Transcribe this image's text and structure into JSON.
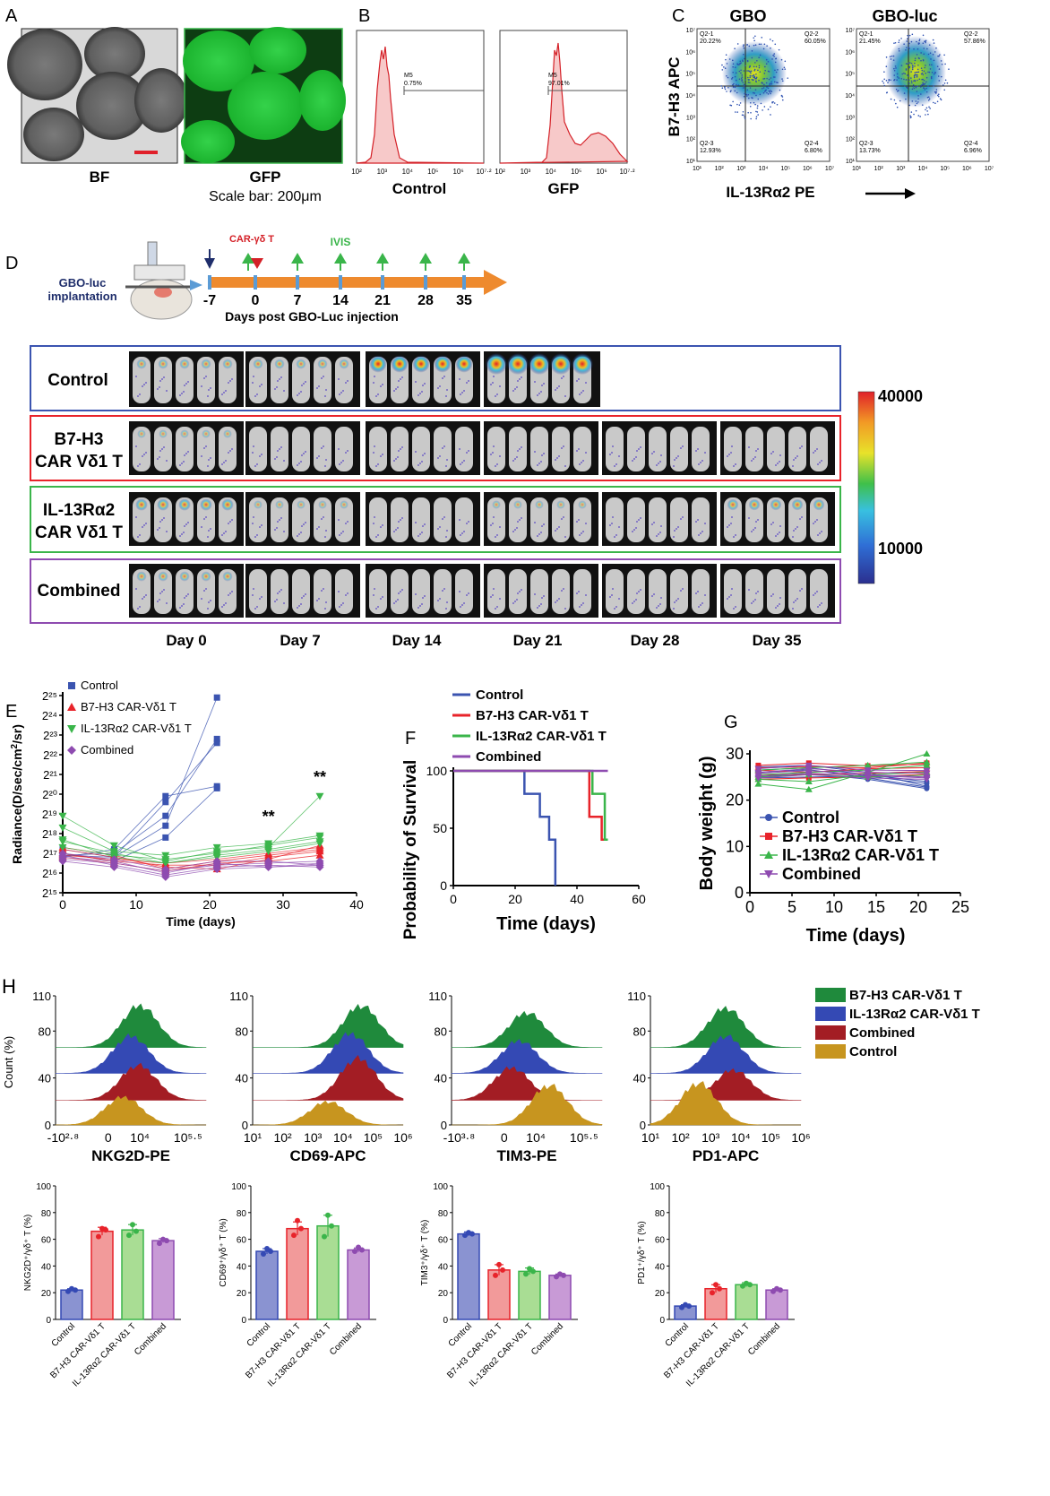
{
  "panels": {
    "A": "A",
    "B": "B",
    "C": "C",
    "D": "D",
    "E": "E",
    "F": "F",
    "G": "G",
    "H": "H"
  },
  "panelA": {
    "bf": "BF",
    "gfp": "GFP",
    "scale": "Scale bar: 200μm"
  },
  "panelB": {
    "control": "Control",
    "gfp": "GFP",
    "gate": "M5",
    "control_pct": "0.75%",
    "gfp_pct": "97.01%",
    "xticks": [
      "10²",
      "10³",
      "10⁴",
      "10⁵",
      "10⁶",
      "10⁷·²"
    ]
  },
  "panelC": {
    "gbo": "GBO",
    "gboluc": "GBO-luc",
    "ylabel": "B7-H3 APC",
    "xlabel": "IL-13Rα2 PE",
    "xticks": [
      "10¹",
      "10²",
      "10³",
      "10⁴",
      "10⁵",
      "10⁶",
      "10⁷"
    ],
    "yticks": [
      "10⁷",
      "10⁶",
      "10⁵",
      "10⁴",
      "10³",
      "10²",
      "10¹"
    ],
    "gbo_q": {
      "q1": "Q2-1",
      "q1v": "20.22%",
      "q2": "Q2-2",
      "q2v": "60.05%",
      "q3": "Q2-3",
      "q3v": "12.93%",
      "q4": "Q2-4",
      "q4v": "6.80%"
    },
    "luc_q": {
      "q1": "Q2-1",
      "q1v": "21.45%",
      "q2": "Q2-2",
      "q2v": "57.86%",
      "q3": "Q2-3",
      "q3v": "13.73%",
      "q4": "Q2-4",
      "q4v": "6.96%"
    }
  },
  "panelD": {
    "implant": "GBO-luc",
    "implant2": "implantation",
    "car": "CAR-γδ T",
    "ivis": "IVIS",
    "days": [
      "-7",
      "0",
      "7",
      "14",
      "21",
      "28",
      "35"
    ],
    "axis": "Days post GBO-Luc injection",
    "groups": [
      "Control",
      "B7-H3",
      "CAR Vδ1 T",
      "IL-13Rα2",
      "CAR Vδ1 T",
      "Combined"
    ],
    "daylabels": [
      "Day 0",
      "Day 7",
      "Day 14",
      "Day 21",
      "Day 28",
      "Day 35"
    ],
    "scale_max": "40000",
    "scale_min": "10000"
  },
  "colors": {
    "control": "#3b54b0",
    "b7": "#e8232a",
    "il13": "#3ab54a",
    "combined": "#8e4bb0",
    "gold": "#c7951f",
    "maroon": "#a31d24"
  },
  "chart_data": [
    {
      "type": "line",
      "title": "",
      "xlabel": "Time (days)",
      "ylabel": "Radiance(D/sec/cm²/sr)",
      "ylabel_parts": [
        "Radiance(D/sec/cm",
        "2",
        "/sr)"
      ],
      "xlim": [
        0,
        40
      ],
      "ylim_log2": [
        15,
        25
      ],
      "xticks": [
        "0",
        "10",
        "20",
        "30",
        "40"
      ],
      "yticks": [
        "2¹⁵",
        "2¹⁶",
        "2¹⁷",
        "2¹⁸",
        "2¹⁹",
        "2²⁰",
        "2²¹",
        "2²²",
        "2²³",
        "2²⁴",
        "2²⁵"
      ],
      "annotations": [
        "**",
        "**"
      ],
      "series": [
        {
          "name": "Control",
          "x": [
            0,
            7,
            14,
            21
          ],
          "mice_log2": [
            [
              16.8,
              17.2,
              19.9,
              20.4
            ],
            [
              16.9,
              17.0,
              18.9,
              22.8
            ],
            [
              17.2,
              16.8,
              18.4,
              24.9
            ],
            [
              17.0,
              16.6,
              17.8,
              20.3
            ],
            [
              16.9,
              16.8,
              19.6,
              22.6
            ]
          ]
        },
        {
          "name": "B7-H3 CAR-Vδ1 T",
          "x": [
            0,
            7,
            14,
            21,
            28,
            35
          ],
          "mice_log2": [
            [
              17.3,
              16.9,
              16.2,
              16.6,
              16.9,
              17.2
            ],
            [
              17.0,
              16.6,
              16.4,
              16.4,
              16.8,
              17.1
            ],
            [
              16.8,
              16.5,
              16.1,
              16.5,
              16.6,
              16.9
            ],
            [
              17.2,
              16.8,
              16.3,
              16.2,
              16.7,
              17.4
            ],
            [
              16.9,
              16.7,
              16.5,
              16.7,
              17.0,
              17.3
            ]
          ]
        },
        {
          "name": "IL-13Rα2 CAR-Vδ1 T",
          "x": [
            0,
            7,
            14,
            21,
            28,
            35
          ],
          "mice_log2": [
            [
              18.9,
              17.4,
              16.6,
              17.1,
              17.3,
              19.9
            ],
            [
              18.3,
              17.1,
              16.9,
              17.3,
              17.5,
              17.9
            ],
            [
              17.6,
              17.0,
              16.5,
              16.9,
              17.2,
              17.6
            ],
            [
              17.3,
              16.9,
              16.7,
              17.0,
              17.4,
              17.8
            ],
            [
              17.7,
              16.8,
              16.5,
              16.8,
              17.1,
              17.5
            ]
          ]
        },
        {
          "name": "Combined",
          "x": [
            0,
            7,
            14,
            21,
            28,
            35
          ],
          "mice_log2": [
            [
              16.8,
              16.6,
              16.0,
              16.5,
              16.3,
              16.4
            ],
            [
              16.9,
              16.4,
              15.9,
              16.3,
              16.4,
              16.3
            ],
            [
              16.7,
              16.5,
              16.1,
              16.4,
              16.5,
              16.6
            ],
            [
              17.0,
              16.7,
              16.2,
              16.6,
              16.6,
              16.4
            ],
            [
              16.6,
              16.3,
              15.8,
              16.2,
              16.3,
              16.5
            ]
          ]
        }
      ]
    },
    {
      "type": "line",
      "title": "",
      "xlabel": "Time (days)",
      "ylabel": "Probability of Survival",
      "xlim": [
        0,
        60
      ],
      "ylim": [
        0,
        100
      ],
      "xticks": [
        "0",
        "20",
        "40",
        "60"
      ],
      "yticks": [
        "0",
        "50",
        "100"
      ],
      "series": [
        {
          "name": "Control",
          "x": [
            0,
            23,
            23,
            28,
            28,
            31,
            31,
            33,
            33
          ],
          "y": [
            100,
            100,
            80,
            80,
            60,
            60,
            40,
            40,
            0
          ]
        },
        {
          "name": "B7-H3 CAR-Vδ1 T",
          "x": [
            0,
            44,
            44,
            48,
            48,
            50
          ],
          "y": [
            100,
            100,
            60,
            60,
            40,
            40
          ]
        },
        {
          "name": "IL-13Rα2 CAR-Vδ1 T",
          "x": [
            0,
            45,
            45,
            49,
            49,
            50
          ],
          "y": [
            100,
            100,
            80,
            80,
            40,
            40
          ]
        },
        {
          "name": "Combined",
          "x": [
            0,
            50
          ],
          "y": [
            100,
            100
          ]
        }
      ]
    },
    {
      "type": "line",
      "title": "",
      "xlabel": "Time (days)",
      "ylabel": "Body weight (g)",
      "xlim": [
        0,
        25
      ],
      "ylim": [
        0,
        30
      ],
      "xticks": [
        "0",
        "5",
        "10",
        "15",
        "20",
        "25"
      ],
      "yticks": [
        "0",
        "10",
        "20",
        "30"
      ],
      "series": [
        {
          "name": "Control",
          "x": [
            1,
            7,
            14,
            21
          ],
          "mice": [
            [
              26.5,
              27.0,
              25.5,
              24.0
            ],
            [
              25.0,
              25.8,
              24.5,
              22.5
            ],
            [
              27.2,
              27.5,
              26.0,
              23.0
            ],
            [
              24.8,
              25.0,
              25.2,
              23.6
            ],
            [
              26.0,
              26.6,
              24.8,
              22.8
            ]
          ]
        },
        {
          "name": "B7-H3 CAR-Vδ1 T",
          "x": [
            1,
            7,
            14,
            21
          ],
          "mice": [
            [
              27.5,
              28.0,
              27.4,
              27.8
            ],
            [
              26.5,
              26.0,
              26.8,
              27.0
            ],
            [
              25.5,
              25.5,
              25.8,
              26.2
            ],
            [
              24.5,
              24.8,
              25.0,
              25.6
            ],
            [
              27.0,
              27.2,
              27.0,
              28.0
            ]
          ]
        },
        {
          "name": "IL-13Rα2 CAR-Vδ1 T",
          "x": [
            1,
            7,
            14,
            21
          ],
          "mice": [
            [
              23.5,
              22.3,
              26.0,
              30.0
            ],
            [
              25.5,
              26.0,
              26.5,
              27.5
            ],
            [
              24.5,
              24.0,
              25.5,
              26.0
            ],
            [
              26.5,
              27.0,
              27.5,
              28.2
            ],
            [
              25.0,
              25.5,
              25.0,
              25.4
            ]
          ]
        },
        {
          "name": "Combined",
          "x": [
            1,
            7,
            14,
            21
          ],
          "mice": [
            [
              25.8,
              26.4,
              25.5,
              25.0
            ],
            [
              26.8,
              27.5,
              26.5,
              26.4
            ],
            [
              24.8,
              25.5,
              24.8,
              24.5
            ],
            [
              26.0,
              26.8,
              26.0,
              25.8
            ],
            [
              25.2,
              25.8,
              25.3,
              24.8
            ]
          ]
        }
      ]
    },
    {
      "type": "bar",
      "ylabel": "NKG2D⁺/γδ⁺ T (%)",
      "categories": [
        "Control",
        "B7-H3 CAR-Vδ1 T",
        "IL-13Rα2 CAR-Vδ1 T",
        "Combined"
      ],
      "values": [
        22,
        66,
        67,
        59
      ],
      "err": [
        1,
        3,
        4,
        1.5
      ],
      "points": [
        [
          21,
          23,
          22
        ],
        [
          62,
          68,
          67
        ],
        [
          63,
          71,
          66
        ],
        [
          57,
          60,
          59
        ]
      ],
      "ylim": [
        0,
        100
      ],
      "yticks": [
        "0",
        "20",
        "40",
        "60",
        "80",
        "100"
      ]
    },
    {
      "type": "bar",
      "ylabel": "CD69⁺/γδ⁺ T (%)",
      "categories": [
        "Control",
        "B7-H3 CAR-Vδ1 T",
        "IL-13Rα2 CAR-Vδ1 T",
        "Combined"
      ],
      "values": [
        51,
        68,
        70,
        52
      ],
      "err": [
        2,
        5,
        8,
        1.5
      ],
      "points": [
        [
          49,
          53,
          51
        ],
        [
          63,
          74,
          68
        ],
        [
          62,
          78,
          70
        ],
        [
          51,
          54,
          52
        ]
      ],
      "ylim": [
        0,
        100
      ],
      "yticks": [
        "0",
        "20",
        "40",
        "60",
        "80",
        "100"
      ]
    },
    {
      "type": "bar",
      "ylabel": "TIM3⁺/γδ⁺ T (%)",
      "categories": [
        "Control",
        "B7-H3 CAR-Vδ1 T",
        "IL-13Rα2 CAR-Vδ1 T",
        "Combined"
      ],
      "values": [
        64,
        37,
        36,
        33
      ],
      "err": [
        1.5,
        4,
        2.5,
        1
      ],
      "points": [
        [
          63,
          65,
          64
        ],
        [
          33,
          41,
          37
        ],
        [
          34,
          38,
          36
        ],
        [
          32,
          34,
          33
        ]
      ],
      "ylim": [
        0,
        100
      ],
      "yticks": [
        "0",
        "20",
        "40",
        "60",
        "80",
        "100"
      ]
    },
    {
      "type": "bar",
      "ylabel": "PD1⁺/γδ⁺ T (%)",
      "categories": [
        "Control",
        "B7-H3 CAR-Vδ1 T",
        "IL-13Rα2 CAR-Vδ1 T",
        "Combined"
      ],
      "values": [
        10,
        23,
        26,
        22
      ],
      "err": [
        1,
        3,
        1.5,
        1
      ],
      "points": [
        [
          9,
          11,
          10
        ],
        [
          20,
          26,
          23
        ],
        [
          25,
          27,
          26
        ],
        [
          21,
          23,
          22
        ]
      ],
      "ylim": [
        0,
        100
      ],
      "yticks": [
        "0",
        "20",
        "40",
        "60",
        "80",
        "100"
      ]
    }
  ],
  "panelH": {
    "legend": [
      "B7-H3 CAR-Vδ1 T",
      "IL-13Rα2 CAR-Vδ1 T",
      "Combined",
      "Control"
    ],
    "ylabel": "Count (%)",
    "yticks": [
      "0",
      "40",
      "80",
      "110"
    ],
    "markers": [
      "NKG2D-PE",
      "CD69-APC",
      "TIM3-PE",
      "PD1-APC"
    ],
    "xticks": [
      [
        "-10²·⁸",
        "0",
        "10⁴",
        "10⁵·⁵"
      ],
      [
        "10¹",
        "10²",
        "10³",
        "10⁴",
        "10⁵",
        "10⁶"
      ],
      [
        "-10³·⁸",
        "0",
        "10⁴",
        "10⁵·⁵"
      ],
      [
        "10¹",
        "10²",
        "10³",
        "10⁴",
        "10⁵",
        "10⁶"
      ]
    ]
  }
}
